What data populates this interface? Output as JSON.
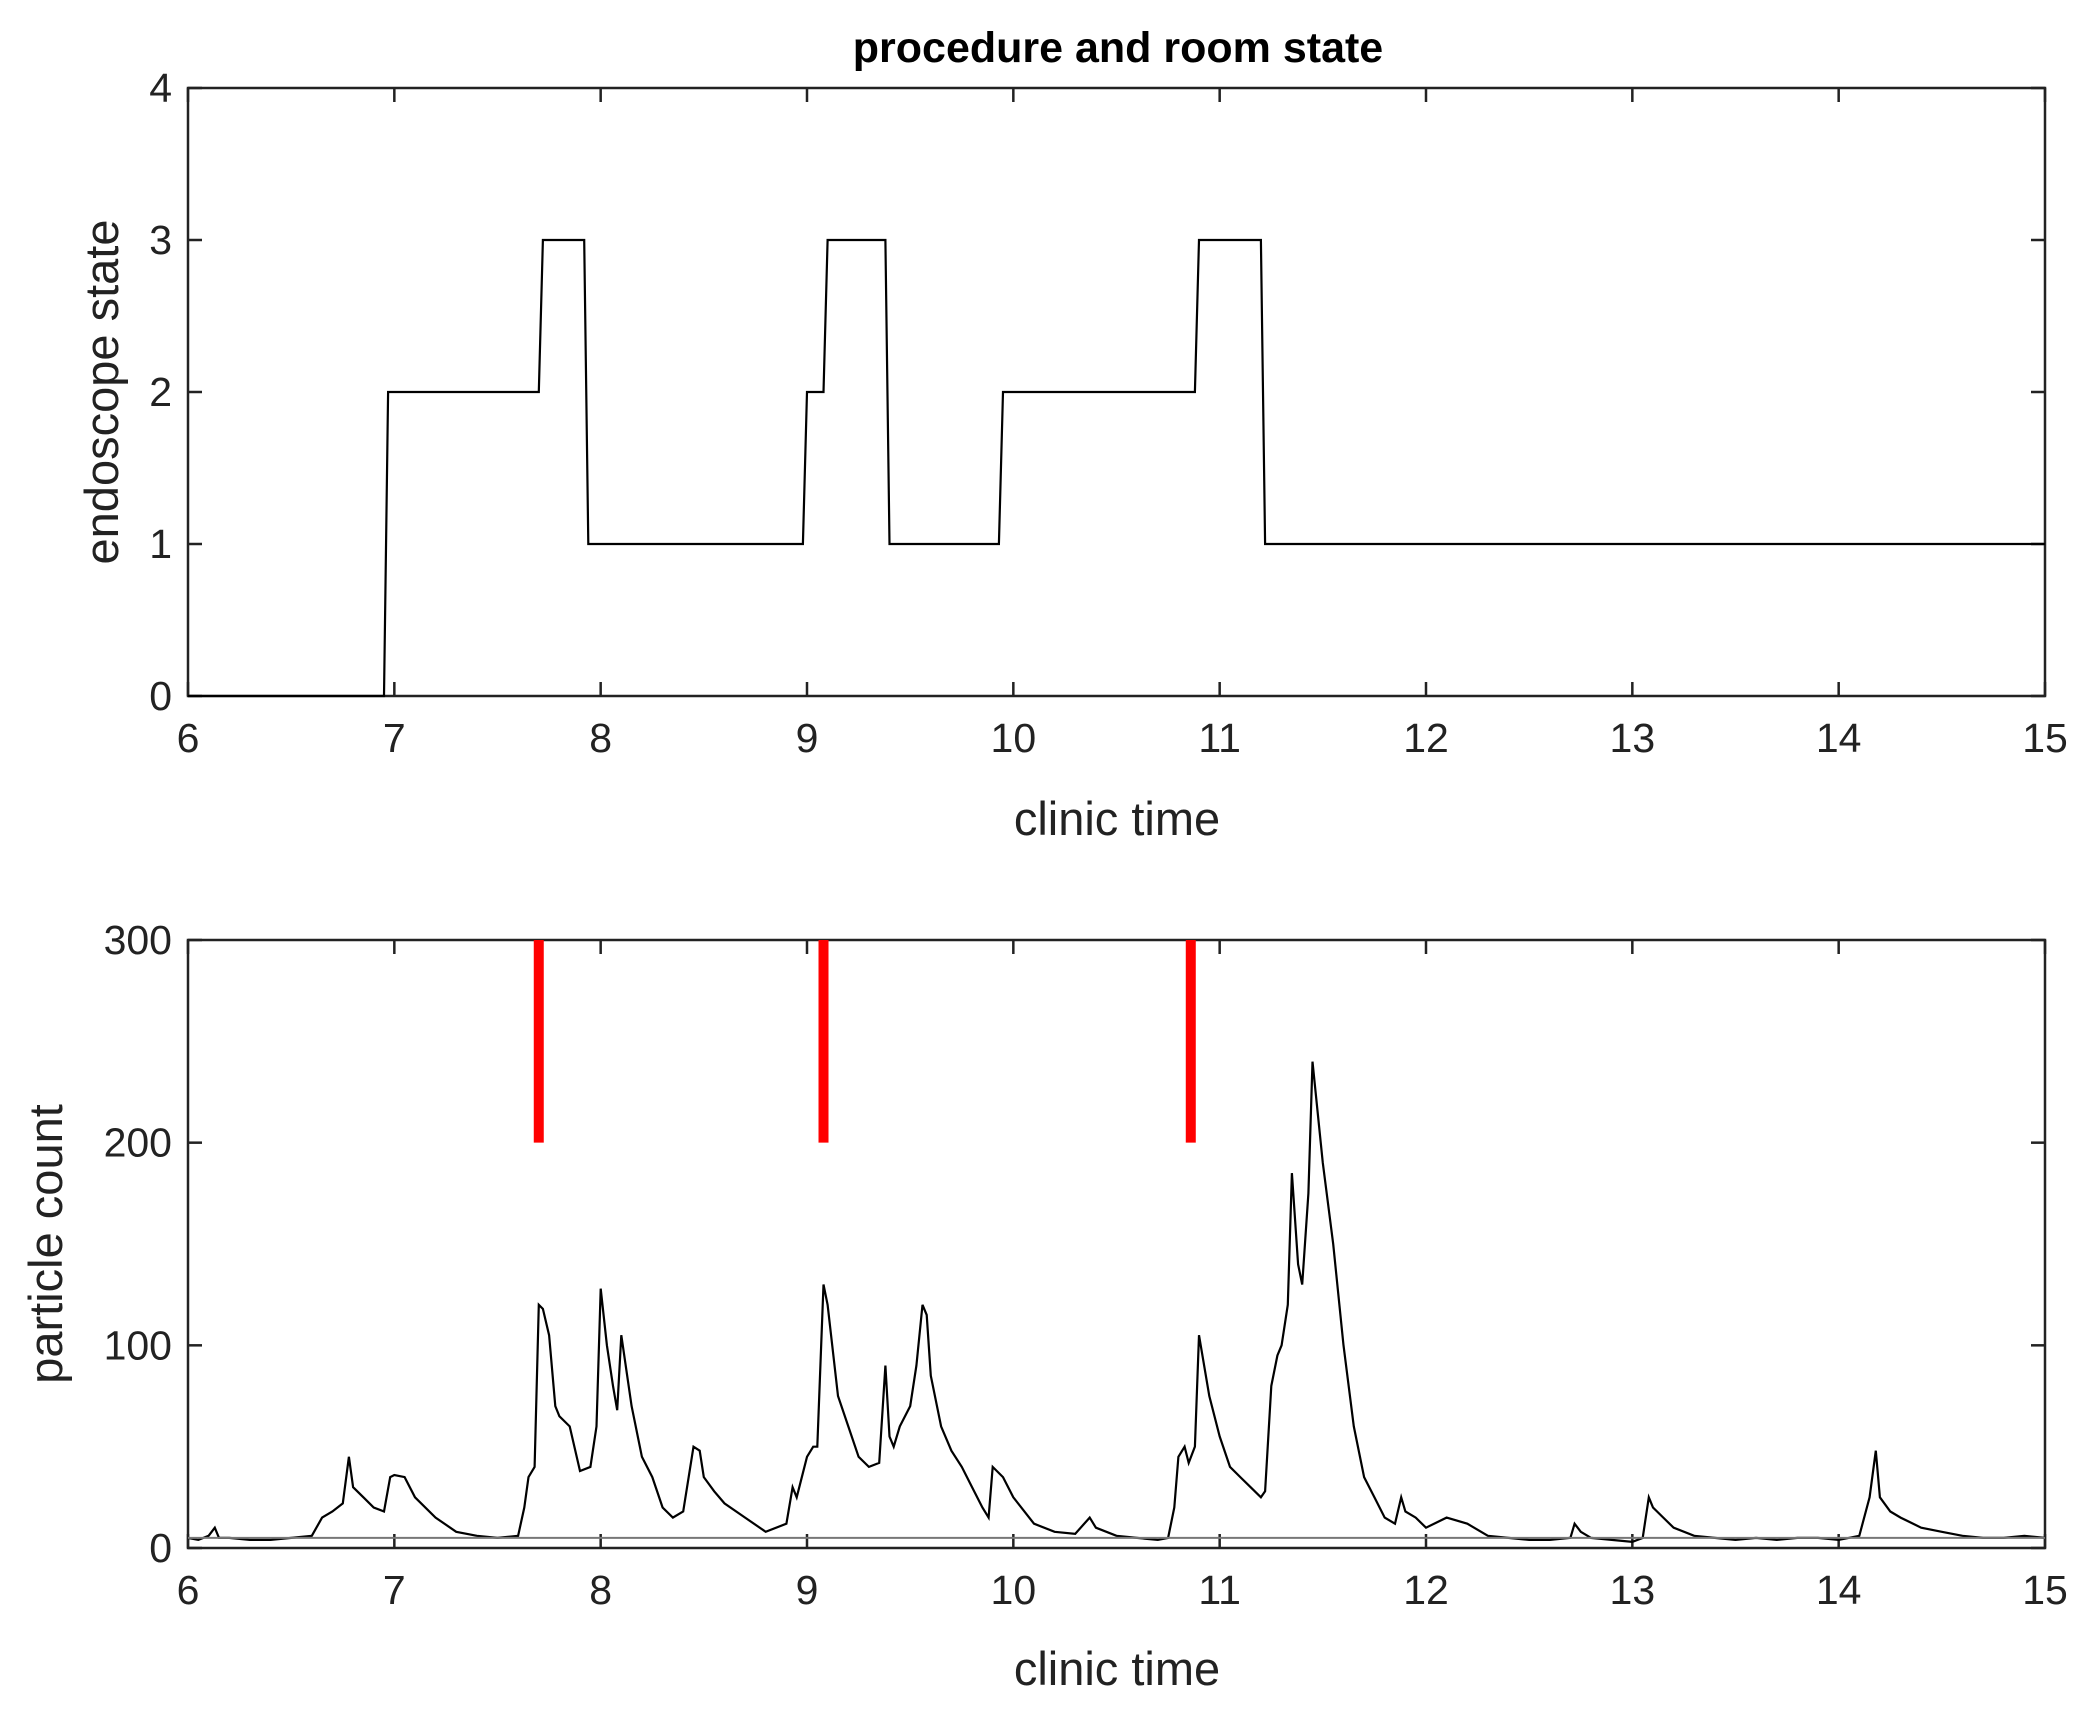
{
  "chart_data": [
    {
      "type": "line",
      "title": "procedure and room state",
      "xlabel": "clinic time",
      "ylabel": "endoscope state",
      "xlim": [
        6,
        15
      ],
      "ylim": [
        0,
        4
      ],
      "xticks": [
        6,
        7,
        8,
        9,
        10,
        11,
        12,
        13,
        14,
        15
      ],
      "yticks": [
        0,
        1,
        2,
        3,
        4
      ],
      "grid": false,
      "series": [
        {
          "color": "#000000",
          "step": true,
          "x": [
            6.0,
            6.95,
            6.97,
            7.7,
            7.72,
            7.92,
            7.94,
            8.98,
            9.0,
            9.08,
            9.1,
            9.38,
            9.4,
            9.93,
            9.95,
            10.88,
            10.9,
            11.2,
            11.22,
            15.0
          ],
          "y": [
            0,
            0,
            2,
            2,
            3,
            3,
            1,
            1,
            2,
            2,
            3,
            3,
            1,
            1,
            2,
            2,
            3,
            3,
            1,
            1
          ]
        }
      ]
    },
    {
      "type": "line",
      "title": "",
      "xlabel": "clinic time",
      "ylabel": "particle count",
      "xlim": [
        6,
        15
      ],
      "ylim": [
        0,
        300
      ],
      "xticks": [
        6,
        7,
        8,
        9,
        10,
        11,
        12,
        13,
        14,
        15
      ],
      "yticks": [
        0,
        100,
        200,
        300
      ],
      "grid": false,
      "series": [
        {
          "color": "#000000",
          "x": [
            6.0,
            6.05,
            6.1,
            6.13,
            6.15,
            6.2,
            6.3,
            6.4,
            6.5,
            6.6,
            6.65,
            6.7,
            6.75,
            6.78,
            6.8,
            6.85,
            6.9,
            6.95,
            6.98,
            7.0,
            7.05,
            7.1,
            7.2,
            7.3,
            7.4,
            7.5,
            7.6,
            7.63,
            7.65,
            7.68,
            7.7,
            7.72,
            7.75,
            7.78,
            7.8,
            7.85,
            7.9,
            7.95,
            7.98,
            8.0,
            8.03,
            8.06,
            8.08,
            8.1,
            8.15,
            8.2,
            8.25,
            8.3,
            8.35,
            8.4,
            8.45,
            8.48,
            8.5,
            8.55,
            8.6,
            8.7,
            8.8,
            8.9,
            8.93,
            8.95,
            9.0,
            9.03,
            9.05,
            9.08,
            9.1,
            9.15,
            9.2,
            9.25,
            9.3,
            9.35,
            9.38,
            9.4,
            9.42,
            9.45,
            9.5,
            9.53,
            9.56,
            9.58,
            9.6,
            9.65,
            9.7,
            9.75,
            9.8,
            9.85,
            9.88,
            9.9,
            9.95,
            10.0,
            10.1,
            10.2,
            10.3,
            10.37,
            10.4,
            10.5,
            10.6,
            10.7,
            10.75,
            10.78,
            10.8,
            10.83,
            10.85,
            10.88,
            10.9,
            10.95,
            11.0,
            11.05,
            11.1,
            11.15,
            11.2,
            11.22,
            11.25,
            11.28,
            11.3,
            11.33,
            11.35,
            11.38,
            11.4,
            11.43,
            11.45,
            11.5,
            11.55,
            11.6,
            11.65,
            11.7,
            11.75,
            11.8,
            11.85,
            11.88,
            11.9,
            11.95,
            12.0,
            12.1,
            12.2,
            12.3,
            12.4,
            12.5,
            12.6,
            12.7,
            12.72,
            12.75,
            12.8,
            12.9,
            13.0,
            13.05,
            13.08,
            13.1,
            13.15,
            13.2,
            13.3,
            13.4,
            13.5,
            13.6,
            13.7,
            13.8,
            13.9,
            14.0,
            14.1,
            14.15,
            14.18,
            14.2,
            14.25,
            14.3,
            14.4,
            14.5,
            14.6,
            14.7,
            14.8,
            14.9,
            15.0
          ],
          "y": [
            5,
            4,
            6,
            10,
            5,
            5,
            4,
            4,
            5,
            6,
            15,
            18,
            22,
            45,
            30,
            25,
            20,
            18,
            35,
            36,
            35,
            25,
            15,
            8,
            6,
            5,
            6,
            20,
            35,
            40,
            120,
            118,
            105,
            70,
            65,
            60,
            38,
            40,
            60,
            128,
            100,
            80,
            68,
            105,
            70,
            45,
            35,
            20,
            15,
            18,
            50,
            48,
            35,
            28,
            22,
            15,
            8,
            12,
            30,
            25,
            45,
            50,
            50,
            130,
            120,
            75,
            60,
            45,
            40,
            42,
            90,
            55,
            50,
            60,
            70,
            90,
            120,
            115,
            85,
            60,
            48,
            40,
            30,
            20,
            15,
            40,
            35,
            25,
            12,
            8,
            7,
            15,
            10,
            6,
            5,
            4,
            5,
            20,
            45,
            50,
            42,
            50,
            105,
            75,
            55,
            40,
            35,
            30,
            25,
            28,
            80,
            95,
            100,
            120,
            185,
            140,
            130,
            175,
            240,
            190,
            150,
            100,
            60,
            35,
            25,
            15,
            12,
            25,
            18,
            15,
            10,
            15,
            12,
            6,
            5,
            4,
            4,
            5,
            12,
            8,
            5,
            4,
            3,
            5,
            25,
            20,
            15,
            10,
            6,
            5,
            4,
            5,
            4,
            5,
            5,
            4,
            6,
            25,
            48,
            25,
            18,
            15,
            10,
            8,
            6,
            5,
            5,
            6,
            5
          ]
        },
        {
          "color": "#777777",
          "x": [
            6,
            15
          ],
          "y": [
            5,
            5
          ]
        },
        {
          "color": "#ff0000",
          "type": "markers",
          "x": [
            7.7,
            9.08,
            10.86
          ],
          "y0": [
            200,
            200,
            200
          ],
          "y1": [
            300,
            300,
            300
          ]
        }
      ]
    }
  ]
}
